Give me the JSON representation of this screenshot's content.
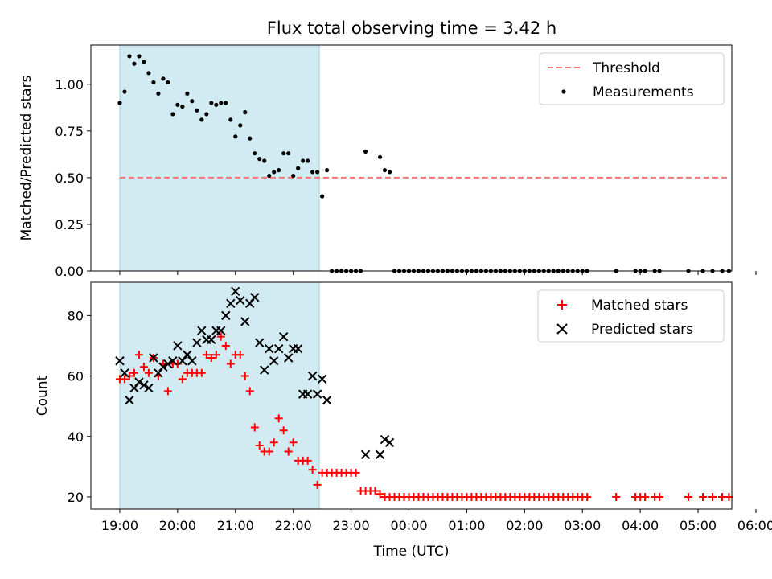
{
  "title": "Flux total observing time = 3.42 h",
  "chart_data": [
    {
      "type": "scatter",
      "ylabel": "Matched/Predicted stars",
      "xlabel": "",
      "ylim": [
        0,
        1.21
      ],
      "yticks": [
        0.0,
        0.25,
        0.5,
        0.75,
        1.0
      ],
      "ytick_labels": [
        "0.00",
        "0.25",
        "0.50",
        "0.75",
        "1.00"
      ],
      "shaded_span": [
        "19:00",
        "22:27"
      ],
      "shade_color": "#add8e6",
      "legend_position": "upper right",
      "threshold": {
        "name": "Threshold",
        "y": 0.5,
        "x": [
          "19:00",
          "29:32"
        ],
        "color": "#ff7373",
        "style": "dashed"
      },
      "series": [
        {
          "name": "Measurements",
          "color": "#000000",
          "marker": "dot",
          "x": [
            "19:00",
            "19:05",
            "19:10",
            "19:15",
            "19:20",
            "19:25",
            "19:30",
            "19:35",
            "19:40",
            "19:45",
            "19:50",
            "19:55",
            "20:00",
            "20:05",
            "20:10",
            "20:15",
            "20:20",
            "20:25",
            "20:30",
            "20:35",
            "20:40",
            "20:45",
            "20:50",
            "20:55",
            "21:00",
            "21:05",
            "21:10",
            "21:15",
            "21:20",
            "21:25",
            "21:30",
            "21:35",
            "21:40",
            "21:45",
            "21:50",
            "21:55",
            "22:00",
            "22:05",
            "22:10",
            "22:15",
            "22:20",
            "22:25",
            "22:30",
            "22:35",
            "23:15",
            "23:30",
            "23:35",
            "23:40",
            "22:40",
            "22:45",
            "22:50",
            "22:55",
            "23:00",
            "23:05",
            "23:10",
            "23:45",
            "23:50",
            "23:55",
            "24:00",
            "24:05",
            "24:10",
            "24:15",
            "24:20",
            "24:25",
            "24:30",
            "24:35",
            "24:40",
            "24:45",
            "24:50",
            "24:55",
            "25:00",
            "25:05",
            "25:10",
            "25:15",
            "25:20",
            "25:25",
            "25:30",
            "25:35",
            "25:40",
            "25:45",
            "25:50",
            "25:55",
            "26:00",
            "26:05",
            "26:10",
            "26:15",
            "26:20",
            "26:25",
            "26:30",
            "26:35",
            "26:40",
            "26:45",
            "26:50",
            "26:55",
            "27:00",
            "27:05",
            "27:35",
            "27:55",
            "28:00",
            "28:05",
            "28:15",
            "28:20",
            "28:50",
            "29:05",
            "29:15",
            "29:25",
            "29:32"
          ],
          "y": [
            0.9,
            0.96,
            1.15,
            1.11,
            1.15,
            1.12,
            1.06,
            1.01,
            0.95,
            1.03,
            1.01,
            0.84,
            0.89,
            0.88,
            0.95,
            0.91,
            0.86,
            0.81,
            0.84,
            0.9,
            0.89,
            0.9,
            0.9,
            0.81,
            0.72,
            0.78,
            0.85,
            0.71,
            0.63,
            0.6,
            0.59,
            0.51,
            0.53,
            0.54,
            0.63,
            0.63,
            0.51,
            0.55,
            0.59,
            0.59,
            0.53,
            0.53,
            0.4,
            0.54,
            0.64,
            0.61,
            0.54,
            0.53,
            0,
            0,
            0,
            0,
            0,
            0,
            0,
            0,
            0,
            0,
            0,
            0,
            0,
            0,
            0,
            0,
            0,
            0,
            0,
            0,
            0,
            0,
            0,
            0,
            0,
            0,
            0,
            0,
            0,
            0,
            0,
            0,
            0,
            0,
            0,
            0,
            0,
            0,
            0,
            0,
            0,
            0,
            0,
            0,
            0,
            0,
            0,
            0,
            0,
            0,
            0,
            0,
            0,
            0,
            0,
            0,
            0,
            0,
            0
          ]
        }
      ]
    },
    {
      "type": "scatter",
      "ylabel": "Count",
      "xlabel": "Time (UTC)",
      "ylim": [
        16,
        91
      ],
      "yticks": [
        20,
        40,
        60,
        80
      ],
      "ytick_labels": [
        "20",
        "40",
        "60",
        "80"
      ],
      "xlim": [
        "18:30",
        "29:35"
      ],
      "xticks": [
        "19:00",
        "20:00",
        "21:00",
        "22:00",
        "23:00",
        "24:00",
        "25:00",
        "26:00",
        "27:00",
        "28:00",
        "29:00",
        "30:00"
      ],
      "xtick_labels": [
        "19:00",
        "20:00",
        "21:00",
        "22:00",
        "23:00",
        "00:00",
        "01:00",
        "02:00",
        "03:00",
        "04:00",
        "05:00",
        "06:00"
      ],
      "shaded_span": [
        "19:00",
        "22:27"
      ],
      "shade_color": "#add8e6",
      "legend_position": "upper right",
      "series": [
        {
          "name": "Matched stars",
          "color": "#ff0000",
          "marker": "plus",
          "x": [
            "19:00",
            "19:05",
            "19:10",
            "19:15",
            "19:20",
            "19:25",
            "19:30",
            "19:35",
            "19:40",
            "19:45",
            "19:50",
            "19:55",
            "20:00",
            "20:05",
            "20:10",
            "20:15",
            "20:20",
            "20:25",
            "20:30",
            "20:35",
            "20:40",
            "20:45",
            "20:50",
            "20:55",
            "21:00",
            "21:05",
            "21:10",
            "21:15",
            "21:20",
            "21:25",
            "21:30",
            "21:35",
            "21:40",
            "21:45",
            "21:50",
            "21:55",
            "22:00",
            "22:05",
            "22:10",
            "22:15",
            "22:20",
            "22:25",
            "22:30",
            "22:35",
            "22:40",
            "22:45",
            "22:50",
            "22:55",
            "23:00",
            "23:05",
            "23:10",
            "23:15",
            "23:20",
            "23:25",
            "23:30",
            "23:35",
            "23:40",
            "23:45",
            "23:50",
            "23:55",
            "24:00",
            "24:05",
            "24:10",
            "24:15",
            "24:20",
            "24:25",
            "24:30",
            "24:35",
            "24:40",
            "24:45",
            "24:50",
            "24:55",
            "25:00",
            "25:05",
            "25:10",
            "25:15",
            "25:20",
            "25:25",
            "25:30",
            "25:35",
            "25:40",
            "25:45",
            "25:50",
            "25:55",
            "26:00",
            "26:05",
            "26:10",
            "26:15",
            "26:20",
            "26:25",
            "26:30",
            "26:35",
            "26:40",
            "26:45",
            "26:50",
            "26:55",
            "27:00",
            "27:05",
            "27:35",
            "27:55",
            "28:00",
            "28:05",
            "28:15",
            "28:20",
            "28:50",
            "29:05",
            "29:15",
            "29:25",
            "29:32"
          ],
          "y": [
            59,
            59,
            60,
            61,
            67,
            63,
            61,
            66,
            60,
            64,
            55,
            64,
            64,
            59,
            61,
            61,
            61,
            61,
            67,
            66,
            67,
            73,
            70,
            64,
            67,
            67,
            60,
            55,
            43,
            37,
            35,
            35,
            38,
            46,
            42,
            35,
            38,
            32,
            32,
            32,
            29,
            24,
            28,
            28,
            28,
            28,
            28,
            28,
            28,
            28,
            22,
            22,
            22,
            22,
            21,
            20,
            20,
            20,
            20,
            20,
            20,
            20,
            20,
            20,
            20,
            20,
            20,
            20,
            20,
            20,
            20,
            20,
            20,
            20,
            20,
            20,
            20,
            20,
            20,
            20,
            20,
            20,
            20,
            20,
            20,
            20,
            20,
            20,
            20,
            20,
            20,
            20,
            20,
            20,
            20,
            20,
            20,
            20,
            20,
            20,
            20,
            20,
            20,
            20,
            20,
            20,
            20,
            20,
            20
          ]
        },
        {
          "name": "Predicted stars",
          "color": "#000000",
          "marker": "x",
          "x": [
            "19:00",
            "19:05",
            "19:10",
            "19:15",
            "19:20",
            "19:25",
            "19:30",
            "19:35",
            "19:40",
            "19:45",
            "19:50",
            "19:55",
            "20:00",
            "20:05",
            "20:10",
            "20:15",
            "20:20",
            "20:25",
            "20:30",
            "20:35",
            "20:40",
            "20:45",
            "20:50",
            "20:55",
            "21:00",
            "21:05",
            "21:10",
            "21:15",
            "21:20",
            "21:25",
            "21:30",
            "21:35",
            "21:40",
            "21:45",
            "21:50",
            "21:55",
            "22:00",
            "22:05",
            "22:10",
            "22:15",
            "22:20",
            "22:25",
            "22:30",
            "22:35",
            "23:15",
            "23:30",
            "23:35",
            "23:40"
          ],
          "y": [
            65,
            61,
            52,
            56,
            58,
            57,
            56,
            66,
            61,
            63,
            64,
            65,
            70,
            65,
            67,
            65,
            71,
            75,
            72,
            72,
            75,
            75,
            80,
            84,
            88,
            85,
            78,
            84,
            86,
            71,
            62,
            69,
            65,
            69,
            73,
            66,
            69,
            69,
            54,
            54,
            60,
            54,
            59,
            52,
            34,
            34,
            39,
            38
          ]
        }
      ]
    }
  ]
}
